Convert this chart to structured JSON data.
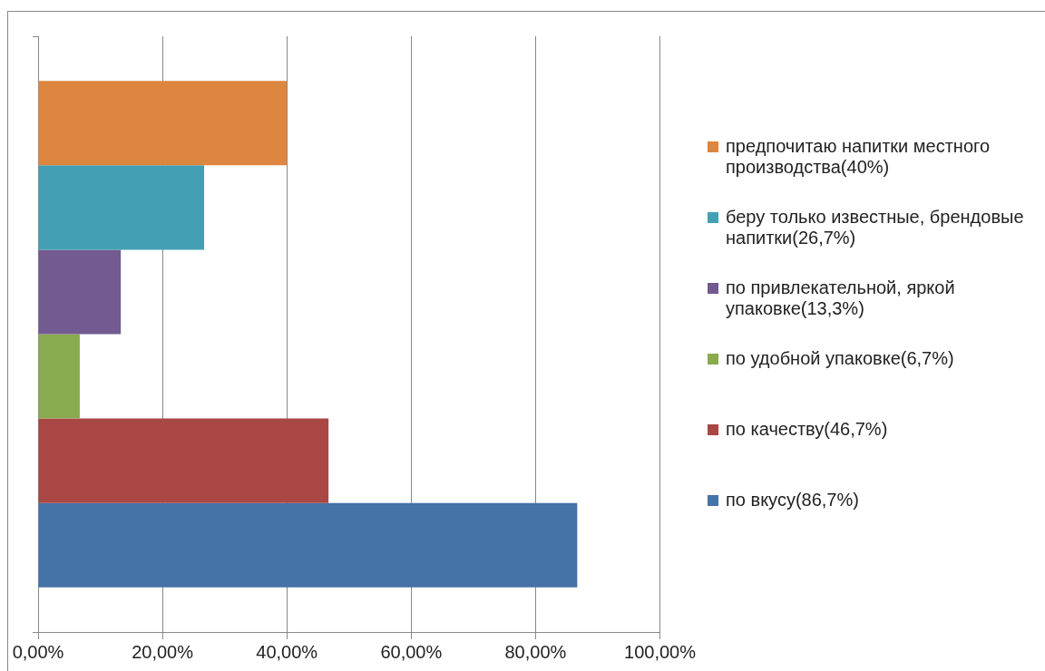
{
  "chart_data": {
    "type": "bar",
    "orientation": "horizontal",
    "categories": [
      null
    ],
    "series": [
      {
        "name": "предпочитаю напитки местного производства(40%)",
        "color": "#dd8640",
        "values": [
          40
        ]
      },
      {
        "name": "беру только известные, брендовые напитки(26,7%)",
        "color": "#43a0b4",
        "values": [
          26.7
        ]
      },
      {
        "name": "по привлекательной, яркой упаковке(13,3%)",
        "color": "#735a91",
        "values": [
          13.3
        ]
      },
      {
        "name": "по удобной упаковке(6,7%)",
        "color": "#8aaa50",
        "values": [
          6.7
        ]
      },
      {
        "name": "по качеству(46,7%)",
        "color": "#a94744",
        "values": [
          46.7
        ]
      },
      {
        "name": "по вкусу(86,7%)",
        "color": "#4572a7",
        "values": [
          86.7
        ]
      }
    ],
    "xlim": [
      0,
      100
    ],
    "xticks": [
      {
        "value": 0,
        "label": "0,00%"
      },
      {
        "value": 20,
        "label": "20,00%"
      },
      {
        "value": 40,
        "label": "40,00%"
      },
      {
        "value": 60,
        "label": "60,00%"
      },
      {
        "value": 80,
        "label": "80,00%"
      },
      {
        "value": 100,
        "label": "100,00%"
      }
    ],
    "grid": "x",
    "legend": "right"
  }
}
